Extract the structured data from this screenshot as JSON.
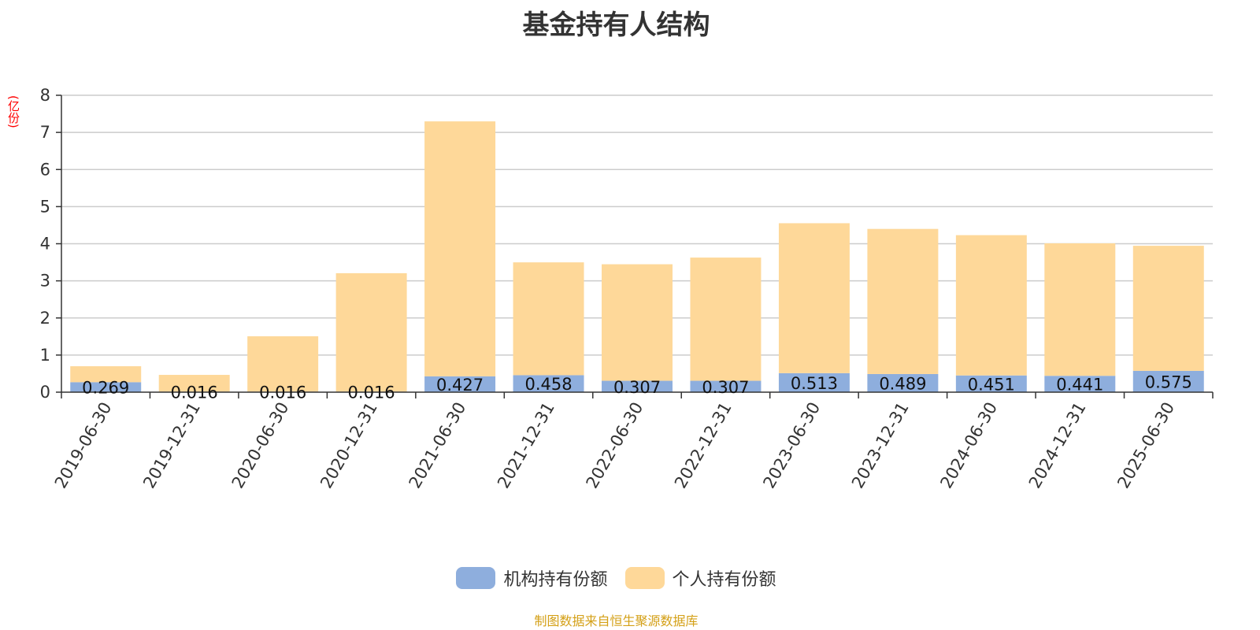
{
  "chart_data": {
    "type": "bar",
    "stacked": true,
    "title": "基金持有人结构",
    "ylabel": "(亿份)",
    "ylim": [
      0,
      8
    ],
    "yticks": [
      "0",
      "1",
      "2",
      "3",
      "4",
      "5",
      "6",
      "7",
      "8"
    ],
    "categories": [
      "2019-06-30",
      "2019-12-31",
      "2020-06-30",
      "2020-12-31",
      "2021-06-30",
      "2021-12-31",
      "2022-06-30",
      "2022-12-31",
      "2023-06-30",
      "2023-12-31",
      "2024-06-30",
      "2024-12-31",
      "2025-06-30"
    ],
    "series": [
      {
        "name": "机构持有份额",
        "color": "#8eaedd",
        "values": [
          0.269,
          0.016,
          0.016,
          0.016,
          0.427,
          0.458,
          0.307,
          0.307,
          0.513,
          0.489,
          0.451,
          0.441,
          0.575
        ],
        "labels": [
          "0.269",
          "0.016",
          "0.016",
          "0.016",
          "0.427",
          "0.458",
          "0.307",
          "0.307",
          "0.513",
          "0.489",
          "0.451",
          "0.441",
          "0.575"
        ]
      },
      {
        "name": "个人持有份额",
        "color": "#fed899",
        "values": [
          0.43,
          0.45,
          1.49,
          3.19,
          6.87,
          3.04,
          3.14,
          3.32,
          4.04,
          3.91,
          3.78,
          3.57,
          3.37
        ]
      }
    ],
    "grid": true,
    "legend_position": "bottom"
  },
  "source_note": "制图数据来自恒生聚源数据库"
}
